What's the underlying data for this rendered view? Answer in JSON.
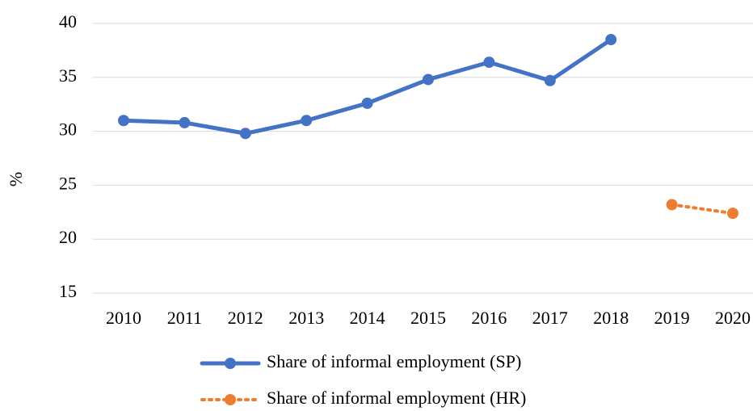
{
  "chart_data": {
    "type": "line",
    "y_label": "%",
    "categories": [
      "2010",
      "2011",
      "2012",
      "2013",
      "2014",
      "2015",
      "2016",
      "2017",
      "2018",
      "2019",
      "2020"
    ],
    "series": [
      {
        "name": "Share of informal employment (SP)",
        "color": "#4472c4",
        "style": "solid",
        "values": [
          31.0,
          30.8,
          29.8,
          31.0,
          32.6,
          34.8,
          36.4,
          34.7,
          38.5,
          null,
          null
        ]
      },
      {
        "name": "Share of informal employment (HR)",
        "color": "#ed7d31",
        "style": "dotted",
        "values": [
          null,
          null,
          null,
          null,
          null,
          null,
          null,
          null,
          null,
          23.2,
          22.4
        ]
      }
    ],
    "ylim": [
      15,
      40
    ],
    "yticks": [
      15,
      20,
      25,
      30,
      35,
      40
    ],
    "grid": true,
    "legend": "bottom"
  }
}
